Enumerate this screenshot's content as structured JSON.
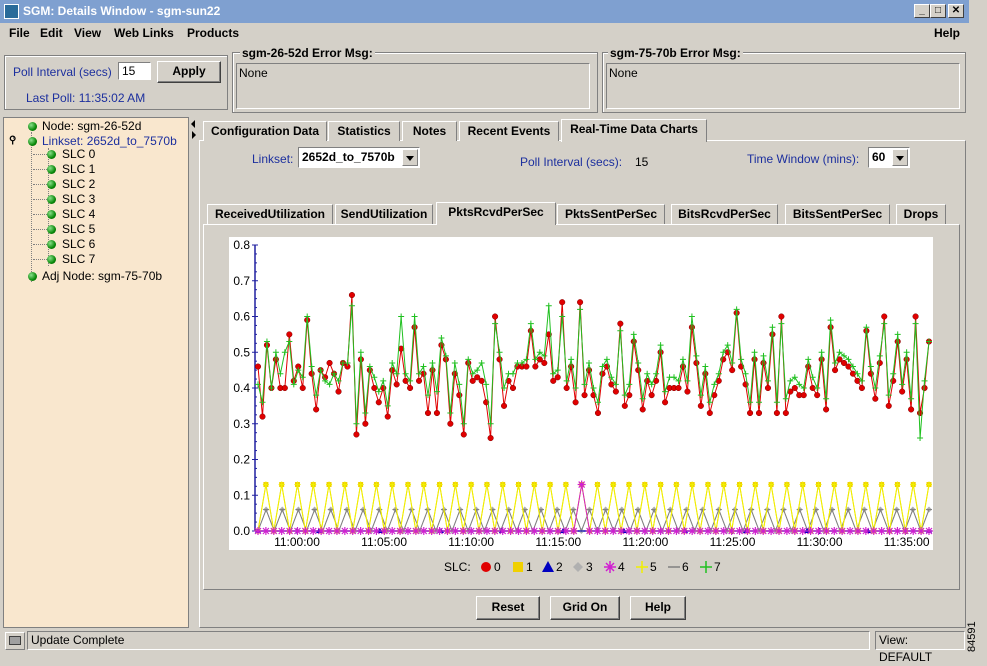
{
  "window": {
    "title": "SGM: Details Window - sgm-sun22",
    "buttons": [
      "_",
      "□",
      "✕"
    ]
  },
  "menu": {
    "items": [
      {
        "label": "File"
      },
      {
        "label": "Edit"
      },
      {
        "label": "View"
      },
      {
        "label": "Web Links"
      },
      {
        "label": "Products"
      }
    ],
    "help": "Help"
  },
  "poll": {
    "label": "Poll Interval (secs)",
    "value": "15",
    "apply": "Apply",
    "last_poll": "Last Poll:  11:35:02 AM"
  },
  "errors": [
    {
      "title": "sgm-26-52d  Error Msg:",
      "message": "None"
    },
    {
      "title": "sgm-75-70b  Error Msg:",
      "message": "None"
    }
  ],
  "tree": {
    "node": "Node: sgm-26-52d",
    "linkset": "Linkset: 2652d_to_7570b",
    "slcs": [
      "SLC 0",
      "SLC 1",
      "SLC 2",
      "SLC 3",
      "SLC 4",
      "SLC 5",
      "SLC 6",
      "SLC 7"
    ],
    "adj_node": "Adj Node: sgm-75-70b"
  },
  "main_tabs": [
    "Configuration Data",
    "Statistics",
    "Notes",
    "Recent Events",
    "Real-Time Data Charts"
  ],
  "active_main_tab": 4,
  "controls": {
    "linkset_label": "Linkset:",
    "linkset_value": "2652d_to_7570b",
    "poll_label": "Poll Interval (secs):",
    "poll_value": "15",
    "window_label": "Time Window (mins):",
    "window_value": "60"
  },
  "chart_tabs": [
    "ReceivedUtilization",
    "SendUtilization",
    "PktsRcvdPerSec",
    "PktsSentPerSec",
    "BitsRcvdPerSec",
    "BitsSentPerSec",
    "Drops"
  ],
  "active_chart_tab": 2,
  "chart_data": {
    "type": "line",
    "title": "",
    "xlabel": "",
    "ylabel": "",
    "ylim": [
      0.0,
      0.8
    ],
    "yticks": [
      "0.0",
      "0.1",
      "0.2",
      "0.3",
      "0.4",
      "0.5",
      "0.6",
      "0.7",
      "0.8"
    ],
    "xticks": [
      "11:00:00",
      "11:05:00",
      "11:10:00",
      "11:15:00",
      "11:20:00",
      "11:25:00",
      "11:30:00",
      "11:35:00"
    ],
    "x_range": [
      "10:57:10",
      "11:35:00"
    ],
    "legend_title": "SLC:",
    "legend_position": "bottom",
    "colors": {
      "0": "#e00000",
      "1": "#f0d000",
      "2": "#0000c0",
      "3": "#b0b0b0",
      "4": "#d020d0",
      "5": "#f0f000",
      "6": "#808080",
      "7": "#20c020"
    },
    "series": [
      {
        "name": "0",
        "marker": "circle",
        "color": "#e00000",
        "values": [
          0.46,
          0.32,
          0.52,
          0.4,
          0.48,
          0.4,
          0.4,
          0.55,
          0.42,
          0.46,
          0.4,
          0.59,
          0.44,
          0.34,
          0.45,
          0.43,
          0.47,
          0.44,
          0.39,
          0.47,
          0.46,
          0.66,
          0.27,
          0.48,
          0.3,
          0.45,
          0.4,
          0.36,
          0.4,
          0.32,
          0.45,
          0.41,
          0.51,
          0.42,
          0.4,
          0.57,
          0.42,
          0.44,
          0.33,
          0.45,
          0.33,
          0.52,
          0.48,
          0.3,
          0.44,
          0.38,
          0.27,
          0.47,
          0.42,
          0.43,
          0.42,
          0.36,
          0.26,
          0.6,
          0.48,
          0.35,
          0.42,
          0.4,
          0.46,
          0.46,
          0.46,
          0.56,
          0.46,
          0.48,
          0.47,
          0.55,
          0.42,
          0.43,
          0.64,
          0.4,
          0.46,
          0.36,
          0.64,
          0.38,
          0.45,
          0.38,
          0.33,
          0.44,
          0.46,
          0.41,
          0.39,
          0.58,
          0.35,
          0.38,
          0.53,
          0.45,
          0.34,
          0.42,
          0.38,
          0.42,
          0.5,
          0.36,
          0.4,
          0.4,
          0.4,
          0.46,
          0.39,
          0.57,
          0.47,
          0.35,
          0.44,
          0.33,
          0.38,
          0.42,
          0.48,
          0.5,
          0.45,
          0.61,
          0.46,
          0.41,
          0.33,
          0.48,
          0.33,
          0.47,
          0.4,
          0.55,
          0.33,
          0.6,
          0.33,
          0.39,
          0.4,
          0.38,
          0.38,
          0.46,
          0.4,
          0.38,
          0.48,
          0.34,
          0.57,
          0.45,
          0.48,
          0.47,
          0.46,
          0.44,
          0.42,
          0.4,
          0.56,
          0.44,
          0.37,
          0.47,
          0.6,
          0.35,
          0.42,
          0.53,
          0.39,
          0.48,
          0.34,
          0.6,
          0.33,
          0.4,
          0.53
        ]
      },
      {
        "name": "1",
        "marker": "square",
        "color": "#f0d000",
        "values": [
          0.0,
          0.13,
          0.0,
          0.13,
          0.0,
          0.13,
          0.0,
          0.13,
          0.0,
          0.13,
          0.0,
          0.13,
          0.0,
          0.13,
          0.0,
          0.13,
          0.0,
          0.13,
          0.0,
          0.13,
          0.0,
          0.13,
          0.0,
          0.13,
          0.0,
          0.13,
          0.0,
          0.13,
          0.0,
          0.13,
          0.0,
          0.13,
          0.0,
          0.13,
          0.0,
          0.13,
          0.0,
          0.13,
          0.0,
          0.13,
          0.0,
          0.13,
          0.0,
          0.13,
          0.0,
          0.13,
          0.0,
          0.13,
          0.0,
          0.13,
          0.0,
          0.13,
          0.0,
          0.13,
          0.0,
          0.13,
          0.0,
          0.13,
          0.0,
          0.13,
          0.0,
          0.13,
          0.0,
          0.13,
          0.0,
          0.13,
          0.0,
          0.13,
          0.0,
          0.13,
          0.0,
          0.13,
          0.0,
          0.13,
          0.0,
          0.13,
          0.0,
          0.13,
          0.0,
          0.13,
          0.0,
          0.13,
          0.0,
          0.13,
          0.0,
          0.13
        ]
      },
      {
        "name": "2",
        "marker": "triangle",
        "color": "#0000c0",
        "values": [
          0.0,
          0.0,
          0.0,
          0.0,
          0.0,
          0.0,
          0.0,
          0.0,
          0.0,
          0.0,
          0.0,
          0.0
        ]
      },
      {
        "name": "3",
        "marker": "diamond",
        "color": "#b0b0b0",
        "values": [
          0.0,
          0.06,
          0.0,
          0.06,
          0.0,
          0.06,
          0.0,
          0.06,
          0.0,
          0.06,
          0.0,
          0.06,
          0.0,
          0.06,
          0.0,
          0.06,
          0.0,
          0.06,
          0.0,
          0.06,
          0.0,
          0.06,
          0.0,
          0.06,
          0.0,
          0.06,
          0.0,
          0.06,
          0.0,
          0.06,
          0.0,
          0.06,
          0.0,
          0.06,
          0.0,
          0.06,
          0.0,
          0.06,
          0.0,
          0.06,
          0.0,
          0.06,
          0.0,
          0.06,
          0.0,
          0.06,
          0.0,
          0.06,
          0.0,
          0.06,
          0.0,
          0.06,
          0.0,
          0.06,
          0.0,
          0.06,
          0.0,
          0.06,
          0.0,
          0.06,
          0.0,
          0.06,
          0.0,
          0.06,
          0.0,
          0.06,
          0.0,
          0.06,
          0.0,
          0.06,
          0.0,
          0.06,
          0.0,
          0.06,
          0.0,
          0.06,
          0.0,
          0.06,
          0.0,
          0.06,
          0.0,
          0.06,
          0.0,
          0.06
        ]
      },
      {
        "name": "4",
        "marker": "star",
        "color": "#d020d0",
        "values": [
          0.0,
          0.0,
          0.0,
          0.0,
          0.0,
          0.0,
          0.0,
          0.0,
          0.0,
          0.0,
          0.0,
          0.0,
          0.0,
          0.0,
          0.0,
          0.0,
          0.0,
          0.0,
          0.0,
          0.0,
          0.0,
          0.0,
          0.0,
          0.0,
          0.0,
          0.0,
          0.0,
          0.0,
          0.0,
          0.0,
          0.0,
          0.0,
          0.0,
          0.0,
          0.0,
          0.0,
          0.0,
          0.0,
          0.0,
          0.0,
          0.0,
          0.13,
          0.0,
          0.0,
          0.0,
          0.0,
          0.0,
          0.0,
          0.0,
          0.0,
          0.0,
          0.0,
          0.0,
          0.0,
          0.0,
          0.0,
          0.0,
          0.0,
          0.0,
          0.0,
          0.0,
          0.0,
          0.0,
          0.0,
          0.0,
          0.0,
          0.0,
          0.0,
          0.0,
          0.0,
          0.0,
          0.0,
          0.0,
          0.0,
          0.0,
          0.0,
          0.0,
          0.0,
          0.0,
          0.0,
          0.0,
          0.0,
          0.0,
          0.0,
          0.0,
          0.0
        ]
      },
      {
        "name": "5",
        "marker": "plus",
        "color": "#f0f000",
        "values": [
          0.0,
          0.13,
          0.0,
          0.13,
          0.0,
          0.13,
          0.0,
          0.13,
          0.0,
          0.13,
          0.0,
          0.13,
          0.0,
          0.13,
          0.0,
          0.13,
          0.0,
          0.13,
          0.0,
          0.13,
          0.0,
          0.13,
          0.0,
          0.13,
          0.0,
          0.13,
          0.0,
          0.13,
          0.0,
          0.13,
          0.0,
          0.13,
          0.0,
          0.13,
          0.0,
          0.13,
          0.0,
          0.13,
          0.0,
          0.13,
          0.0,
          0.13,
          0.0,
          0.13,
          0.0,
          0.13,
          0.0,
          0.13,
          0.0,
          0.13,
          0.0,
          0.13,
          0.0,
          0.13,
          0.0,
          0.13,
          0.0,
          0.13,
          0.0,
          0.13,
          0.0,
          0.13,
          0.0,
          0.13,
          0.0,
          0.13,
          0.0,
          0.13,
          0.0,
          0.13,
          0.0,
          0.13,
          0.0,
          0.13,
          0.0,
          0.13,
          0.0,
          0.13,
          0.0,
          0.13,
          0.0,
          0.13,
          0.0,
          0.13,
          0.0,
          0.13
        ]
      },
      {
        "name": "6",
        "marker": "dash",
        "color": "#808080",
        "values": [
          0.0,
          0.06,
          0.0,
          0.06,
          0.0,
          0.06,
          0.0,
          0.06,
          0.0,
          0.06,
          0.0,
          0.06,
          0.0,
          0.06,
          0.0,
          0.06,
          0.0,
          0.06,
          0.0,
          0.06,
          0.0,
          0.06,
          0.0,
          0.06,
          0.0,
          0.06,
          0.0,
          0.06,
          0.0,
          0.06,
          0.0,
          0.06,
          0.0,
          0.06,
          0.0,
          0.06,
          0.0,
          0.06,
          0.0,
          0.06,
          0.0,
          0.06,
          0.0,
          0.06,
          0.0,
          0.06,
          0.0,
          0.06,
          0.0,
          0.06,
          0.0,
          0.06,
          0.0,
          0.06,
          0.0,
          0.06,
          0.0,
          0.06,
          0.0,
          0.06,
          0.0,
          0.06,
          0.0,
          0.06,
          0.0,
          0.06,
          0.0,
          0.06,
          0.0,
          0.06,
          0.0,
          0.06,
          0.0,
          0.06,
          0.0,
          0.06,
          0.0,
          0.06,
          0.0,
          0.06,
          0.0,
          0.06,
          0.0,
          0.06
        ]
      },
      {
        "name": "7",
        "marker": "plus",
        "color": "#20c020",
        "values": [
          0.41,
          0.36,
          0.53,
          0.4,
          0.5,
          0.44,
          0.5,
          0.53,
          0.41,
          0.45,
          0.43,
          0.6,
          0.46,
          0.38,
          0.45,
          0.42,
          0.41,
          0.44,
          0.42,
          0.47,
          0.47,
          0.63,
          0.3,
          0.5,
          0.33,
          0.46,
          0.43,
          0.39,
          0.42,
          0.35,
          0.47,
          0.44,
          0.6,
          0.44,
          0.42,
          0.6,
          0.44,
          0.46,
          0.38,
          0.47,
          0.39,
          0.54,
          0.49,
          0.33,
          0.47,
          0.41,
          0.3,
          0.48,
          0.44,
          0.45,
          0.47,
          0.41,
          0.3,
          0.58,
          0.5,
          0.4,
          0.44,
          0.44,
          0.47,
          0.47,
          0.48,
          0.58,
          0.48,
          0.5,
          0.49,
          0.63,
          0.44,
          0.45,
          0.6,
          0.42,
          0.48,
          0.4,
          0.62,
          0.41,
          0.47,
          0.4,
          0.36,
          0.46,
          0.48,
          0.43,
          0.41,
          0.56,
          0.38,
          0.41,
          0.55,
          0.47,
          0.37,
          0.44,
          0.41,
          0.44,
          0.52,
          0.39,
          0.43,
          0.43,
          0.42,
          0.48,
          0.42,
          0.6,
          0.49,
          0.38,
          0.46,
          0.36,
          0.41,
          0.44,
          0.5,
          0.52,
          0.47,
          0.62,
          0.48,
          0.44,
          0.36,
          0.5,
          0.36,
          0.49,
          0.42,
          0.57,
          0.36,
          0.58,
          0.37,
          0.42,
          0.43,
          0.41,
          0.4,
          0.48,
          0.43,
          0.4,
          0.5,
          0.37,
          0.59,
          0.47,
          0.5,
          0.49,
          0.48,
          0.46,
          0.44,
          0.42,
          0.57,
          0.46,
          0.4,
          0.49,
          0.58,
          0.38,
          0.44,
          0.55,
          0.41,
          0.5,
          0.37,
          0.58,
          0.26,
          0.42,
          0.53
        ]
      }
    ]
  },
  "bottom_buttons": {
    "reset": "Reset",
    "grid": "Grid On",
    "help": "Help"
  },
  "status": {
    "left": "Update Complete",
    "right": "View: DEFAULT",
    "figure_id": "84591"
  }
}
